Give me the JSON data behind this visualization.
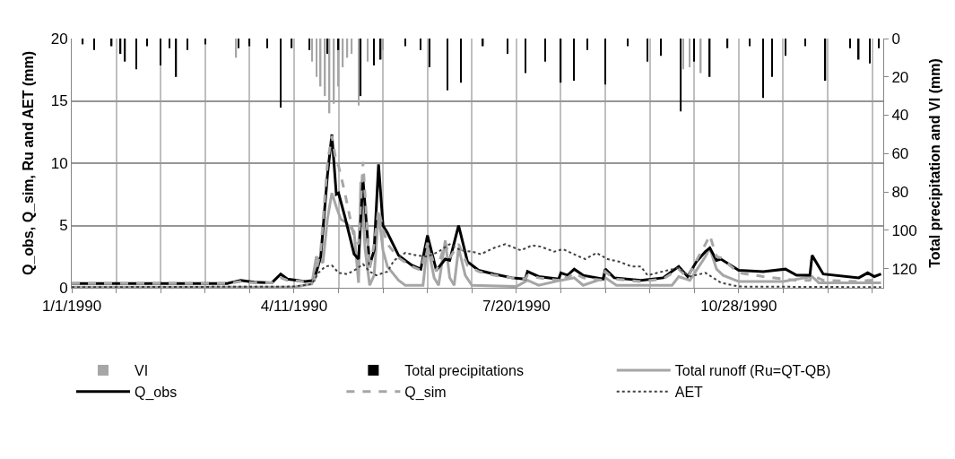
{
  "chart_data": {
    "type": "line",
    "ylabel": "Q_obs, Q_sim, Ru and AET (mm)",
    "y2label": "Total precipitation and VI (mm)",
    "xlim": [
      "1990-01-01",
      "1991-01-01"
    ],
    "xticks": [
      {
        "value": "1990-01-01",
        "label": "1/1/1990"
      },
      {
        "value": "1990-01-21",
        "label": null
      },
      {
        "value": "1990-02-10",
        "label": null
      },
      {
        "value": "1990-03-02",
        "label": null
      },
      {
        "value": "1990-03-22",
        "label": null
      },
      {
        "value": "1990-04-11",
        "label": "4/11/1990"
      },
      {
        "value": "1990-05-01",
        "label": null
      },
      {
        "value": "1990-05-21",
        "label": null
      },
      {
        "value": "1990-06-10",
        "label": null
      },
      {
        "value": "1990-06-30",
        "label": null
      },
      {
        "value": "1990-07-20",
        "label": "7/20/1990"
      },
      {
        "value": "1990-08-09",
        "label": null
      },
      {
        "value": "1990-08-29",
        "label": null
      },
      {
        "value": "1990-09-18",
        "label": null
      },
      {
        "value": "1990-10-08",
        "label": null
      },
      {
        "value": "1990-10-28",
        "label": "10/28/1990"
      },
      {
        "value": "1990-11-17",
        "label": null
      },
      {
        "value": "1990-12-07",
        "label": null
      },
      {
        "value": "1990-12-27",
        "label": null
      }
    ],
    "ylim": [
      0,
      20
    ],
    "yticks": [
      0,
      5,
      10,
      15,
      20
    ],
    "y2lim": [
      130,
      0
    ],
    "y2ticks": [
      0,
      20,
      40,
      60,
      80,
      100,
      120
    ],
    "grid": true,
    "legend": "bottom",
    "marker": "none",
    "series": [
      {
        "name": "VI",
        "type": "bar",
        "axis": "y2",
        "color": "#a6a6a6",
        "x": [
          "1990-03-16",
          "1990-04-19",
          "1990-04-21",
          "1990-04-23",
          "1990-04-25",
          "1990-04-27",
          "1990-04-29",
          "1990-05-01",
          "1990-05-03",
          "1990-05-05",
          "1990-05-07",
          "1990-05-10",
          "1990-05-14",
          "1990-05-21",
          "1990-10-03",
          "1990-10-06",
          "1990-10-11"
        ],
        "values": [
          10,
          12,
          20,
          25,
          30,
          39,
          34,
          25,
          15,
          10,
          8,
          35,
          12,
          6,
          16,
          15,
          18
        ]
      },
      {
        "name": "Total precipitations",
        "type": "bar",
        "axis": "y2",
        "color": "#000000",
        "x": [
          "1990-01-06",
          "1990-01-11",
          "1990-01-19",
          "1990-01-23",
          "1990-01-25",
          "1990-01-30",
          "1990-02-04",
          "1990-02-10",
          "1990-02-14",
          "1990-02-17",
          "1990-02-22",
          "1990-03-02",
          "1990-03-17",
          "1990-03-22",
          "1990-03-30",
          "1990-04-05",
          "1990-04-10",
          "1990-04-18",
          "1990-04-26",
          "1990-05-01",
          "1990-05-11",
          "1990-05-17",
          "1990-05-20",
          "1990-05-31",
          "1990-06-07",
          "1990-06-11",
          "1990-06-19",
          "1990-06-25",
          "1990-07-05",
          "1990-07-16",
          "1990-07-24",
          "1990-08-02",
          "1990-08-09",
          "1990-08-15",
          "1990-08-21",
          "1990-08-29",
          "1990-09-08",
          "1990-09-17",
          "1990-09-23",
          "1990-10-02",
          "1990-10-08",
          "1990-10-15",
          "1990-10-23",
          "1990-11-02",
          "1990-11-08",
          "1990-11-12",
          "1990-11-18",
          "1990-11-27",
          "1990-12-06",
          "1990-12-17",
          "1990-12-21",
          "1990-12-26",
          "1990-12-30"
        ],
        "values": [
          3,
          6,
          4,
          8,
          12,
          16,
          4,
          14,
          5,
          20,
          6,
          3,
          5,
          4,
          5,
          36,
          5,
          6,
          8,
          6,
          30,
          14,
          11,
          4,
          6,
          15,
          27,
          23,
          4,
          8,
          18,
          12,
          23,
          22,
          6,
          24,
          4,
          12,
          9,
          38,
          12,
          20,
          5,
          4,
          31,
          20,
          9,
          4,
          22,
          5,
          11,
          13,
          5
        ]
      },
      {
        "name": "Total runoff (Ru=QT-QB)",
        "color": "#a6a6a6",
        "line_style": "solid",
        "x": [
          "1990-01-01",
          "1990-04-11",
          "1990-04-19",
          "1990-04-21",
          "1990-04-24",
          "1990-04-26",
          "1990-04-28",
          "1990-04-30",
          "1990-05-02",
          "1990-05-04",
          "1990-05-08",
          "1990-05-10",
          "1990-05-11",
          "1990-05-13",
          "1990-05-15",
          "1990-05-17",
          "1990-05-19",
          "1990-05-21",
          "1990-05-23",
          "1990-05-28",
          "1990-05-31",
          "1990-06-08",
          "1990-06-10",
          "1990-06-13",
          "1990-06-15",
          "1990-06-18",
          "1990-06-20",
          "1990-06-22",
          "1990-06-24",
          "1990-06-27",
          "1990-06-30",
          "1990-07-20",
          "1990-07-25",
          "1990-07-30",
          "1990-08-09",
          "1990-08-15",
          "1990-08-19",
          "1990-08-29",
          "1990-09-03",
          "1990-09-28",
          "1990-10-01",
          "1990-10-06",
          "1990-10-13",
          "1990-10-15",
          "1990-10-18",
          "1990-10-21",
          "1990-10-28",
          "1990-11-17",
          "1990-11-30",
          "1990-12-03",
          "1990-12-31"
        ],
        "values": [
          0.05,
          0.05,
          0.3,
          2.5,
          2.0,
          5.5,
          7.6,
          6.5,
          5.5,
          5.3,
          4.5,
          0.4,
          8.5,
          3,
          0.2,
          1,
          6,
          3,
          1.7,
          0.6,
          0.2,
          0.2,
          3.5,
          0.8,
          0.2,
          3.8,
          0.8,
          0.2,
          3.2,
          1.0,
          0.2,
          0.1,
          0.6,
          0.2,
          0.6,
          0.8,
          0.2,
          0.8,
          0.2,
          0.2,
          0.9,
          0.6,
          2.5,
          3.2,
          1.5,
          1.0,
          0.5,
          0.5,
          0.9,
          0.4,
          0.4
        ]
      },
      {
        "name": "Q_obs",
        "color": "#000000",
        "line_style": "solid",
        "x": [
          "1990-01-01",
          "1990-02-10",
          "1990-03-12",
          "1990-03-18",
          "1990-03-24",
          "1990-04-01",
          "1990-04-05",
          "1990-04-08",
          "1990-04-16",
          "1990-04-20",
          "1990-04-23",
          "1990-04-26",
          "1990-04-28",
          "1990-04-30",
          "1990-05-01",
          "1990-05-04",
          "1990-05-08",
          "1990-05-10",
          "1990-05-12",
          "1990-05-15",
          "1990-05-17",
          "1990-05-19",
          "1990-05-21",
          "1990-05-23",
          "1990-05-28",
          "1990-06-03",
          "1990-06-07",
          "1990-06-10",
          "1990-06-14",
          "1990-06-18",
          "1990-06-20",
          "1990-06-24",
          "1990-06-28",
          "1990-07-03",
          "1990-07-10",
          "1990-07-18",
          "1990-07-24",
          "1990-07-25",
          "1990-07-30",
          "1990-08-08",
          "1990-08-09",
          "1990-08-12",
          "1990-08-15",
          "1990-08-19",
          "1990-08-28",
          "1990-08-29",
          "1990-09-02",
          "1990-09-14",
          "1990-09-24",
          "1990-10-01",
          "1990-10-05",
          "1990-10-09",
          "1990-10-13",
          "1990-10-15",
          "1990-10-18",
          "1990-10-20",
          "1990-10-28",
          "1990-11-08",
          "1990-11-18",
          "1990-11-23",
          "1990-11-29",
          "1990-11-30",
          "1990-12-05",
          "1990-12-21",
          "1990-12-25",
          "1990-12-28",
          "1990-12-31"
        ],
        "values": [
          0.35,
          0.35,
          0.35,
          0.6,
          0.45,
          0.4,
          1.1,
          0.7,
          0.5,
          0.6,
          2.5,
          9,
          12.3,
          7.5,
          7.6,
          5.6,
          2.7,
          2.3,
          8.7,
          1.8,
          3,
          9.9,
          5,
          4.4,
          2.6,
          1.8,
          1.5,
          4.2,
          1.4,
          2.3,
          2.2,
          5.0,
          2.1,
          1.4,
          1.1,
          0.8,
          0.7,
          1.3,
          0.9,
          0.7,
          1.2,
          1.0,
          1.5,
          1.0,
          0.7,
          1.5,
          0.8,
          0.6,
          0.8,
          1.7,
          0.9,
          2.1,
          2.9,
          3.2,
          2.2,
          2.3,
          1.4,
          1.3,
          1.5,
          1.0,
          1.0,
          2.6,
          1.1,
          0.8,
          1.2,
          0.9,
          1.1
        ]
      },
      {
        "name": "Q_sim",
        "color": "#a6a6a6",
        "line_style": "dashed",
        "x": [
          "1990-01-01",
          "1990-02-10",
          "1990-03-12",
          "1990-03-18",
          "1990-03-24",
          "1990-04-01",
          "1990-04-05",
          "1990-04-08",
          "1990-04-16",
          "1990-04-20",
          "1990-04-23",
          "1990-04-26",
          "1990-04-28",
          "1990-04-30",
          "1990-05-01",
          "1990-05-04",
          "1990-05-08",
          "1990-05-10",
          "1990-05-12",
          "1990-05-15",
          "1990-05-17",
          "1990-05-19",
          "1990-05-21",
          "1990-05-23",
          "1990-05-28",
          "1990-06-03",
          "1990-06-07",
          "1990-06-10",
          "1990-06-14",
          "1990-06-18",
          "1990-06-20",
          "1990-06-24",
          "1990-06-28",
          "1990-07-03",
          "1990-07-10",
          "1990-07-18",
          "1990-07-24",
          "1990-07-25",
          "1990-07-30",
          "1990-08-08",
          "1990-08-09",
          "1990-08-12",
          "1990-08-15",
          "1990-08-19",
          "1990-08-28",
          "1990-08-29",
          "1990-09-02",
          "1990-09-14",
          "1990-09-24",
          "1990-10-01",
          "1990-10-05",
          "1990-10-09",
          "1990-10-13",
          "1990-10-15",
          "1990-10-18",
          "1990-10-20",
          "1990-10-28",
          "1990-11-08",
          "1990-11-18",
          "1990-11-23",
          "1990-11-29",
          "1990-11-30",
          "1990-12-05",
          "1990-12-21",
          "1990-12-25",
          "1990-12-28",
          "1990-12-31"
        ],
        "values": [
          0.35,
          0.35,
          0.35,
          0.5,
          0.4,
          0.4,
          0.8,
          0.6,
          0.5,
          0.6,
          3,
          10,
          12.2,
          10,
          9.8,
          7.5,
          4.0,
          3.5,
          10.1,
          1.5,
          3.5,
          6.3,
          4.7,
          3.5,
          2.4,
          1.7,
          1.4,
          3.6,
          1.3,
          3.6,
          2.4,
          3.5,
          1.8,
          1.3,
          1.0,
          0.8,
          0.7,
          1.0,
          0.8,
          0.6,
          1.0,
          0.8,
          1.2,
          0.8,
          0.6,
          1.3,
          0.7,
          0.5,
          0.7,
          1.5,
          0.8,
          2.2,
          3.5,
          4.2,
          2.5,
          2.4,
          1.2,
          0.9,
          0.7,
          0.6,
          0.6,
          1.0,
          0.6,
          0.5,
          0.6,
          0.6,
          0.6
        ]
      },
      {
        "name": "AET",
        "color": "#404040",
        "line_style": "dotted",
        "x": [
          "1990-01-01",
          "1990-04-11",
          "1990-04-19",
          "1990-04-22",
          "1990-04-25",
          "1990-04-28",
          "1990-05-01",
          "1990-05-05",
          "1990-05-09",
          "1990-05-12",
          "1990-05-15",
          "1990-05-18",
          "1990-05-23",
          "1990-05-26",
          "1990-05-31",
          "1990-06-05",
          "1990-06-10",
          "1990-06-15",
          "1990-06-20",
          "1990-06-25",
          "1990-06-30",
          "1990-07-04",
          "1990-07-10",
          "1990-07-15",
          "1990-07-22",
          "1990-07-27",
          "1990-07-31",
          "1990-08-06",
          "1990-08-10",
          "1990-08-16",
          "1990-08-20",
          "1990-08-25",
          "1990-08-30",
          "1990-09-04",
          "1990-09-10",
          "1990-09-14",
          "1990-09-17",
          "1990-09-26",
          "1990-10-01",
          "1990-10-06",
          "1990-10-13",
          "1990-10-20",
          "1990-10-28",
          "1990-12-31"
        ],
        "values": [
          0.05,
          0.1,
          0.3,
          1.2,
          1.7,
          1.8,
          1.2,
          1.1,
          1.5,
          1.9,
          1.3,
          1.0,
          1.3,
          2.2,
          2.8,
          2.6,
          2.5,
          2.9,
          3.5,
          3.0,
          2.9,
          2.7,
          3.2,
          3.5,
          3.0,
          3.4,
          3.3,
          2.9,
          3.1,
          2.6,
          2.3,
          2.8,
          2.3,
          2.1,
          1.7,
          1.7,
          1.0,
          1.4,
          1.6,
          0.9,
          1.2,
          0.4,
          0.1,
          0.05
        ]
      }
    ]
  }
}
